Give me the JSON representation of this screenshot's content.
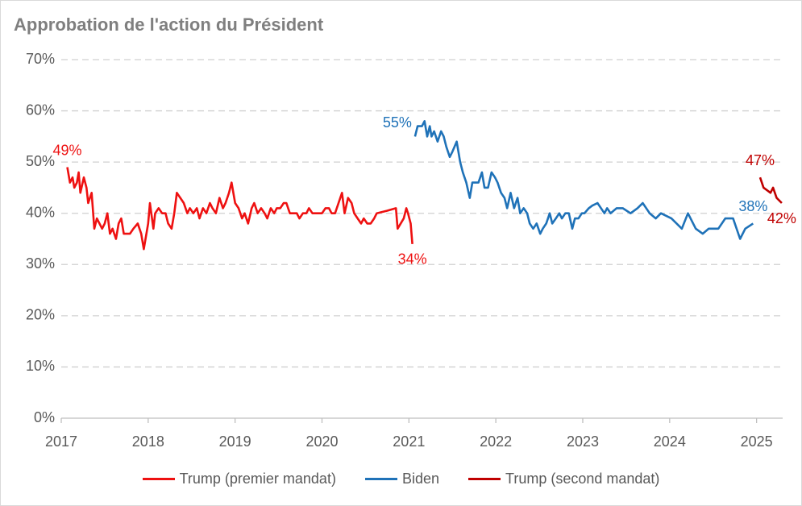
{
  "chart_data": {
    "type": "line",
    "title": "Approbation de l'action du Président",
    "xlim": [
      2017,
      2025.3
    ],
    "xticks": [
      2017,
      2018,
      2019,
      2020,
      2021,
      2022,
      2023,
      2024,
      2025
    ],
    "ylim": [
      0,
      70
    ],
    "yticks": [
      {
        "value": 0,
        "label": "0%"
      },
      {
        "value": 10,
        "label": "10%"
      },
      {
        "value": 20,
        "label": "20%"
      },
      {
        "value": 30,
        "label": "30%"
      },
      {
        "value": 40,
        "label": "40%"
      },
      {
        "value": 50,
        "label": "50%"
      },
      {
        "value": 60,
        "label": "60%"
      },
      {
        "value": 70,
        "label": "70%"
      }
    ],
    "grid": true,
    "legend": "bottom",
    "series": [
      {
        "name": "Trump (premier mandat)",
        "color": "#ee1111",
        "x": [
          2017.07,
          2017.1,
          2017.13,
          2017.15,
          2017.18,
          2017.2,
          2017.22,
          2017.26,
          2017.29,
          2017.31,
          2017.35,
          2017.38,
          2017.41,
          2017.44,
          2017.47,
          2017.5,
          2017.53,
          2017.56,
          2017.59,
          2017.63,
          2017.66,
          2017.69,
          2017.72,
          2017.79,
          2017.83,
          2017.88,
          2017.92,
          2017.95,
          2018.0,
          2018.02,
          2018.06,
          2018.08,
          2018.12,
          2018.16,
          2018.2,
          2018.23,
          2018.27,
          2018.3,
          2018.33,
          2018.37,
          2018.41,
          2018.45,
          2018.48,
          2018.52,
          2018.56,
          2018.59,
          2018.63,
          2018.67,
          2018.71,
          2018.74,
          2018.78,
          2018.82,
          2018.86,
          2018.89,
          2018.93,
          2018.96,
          2019.0,
          2019.04,
          2019.08,
          2019.11,
          2019.15,
          2019.19,
          2019.22,
          2019.26,
          2019.3,
          2019.34,
          2019.37,
          2019.41,
          2019.45,
          2019.48,
          2019.52,
          2019.56,
          2019.59,
          2019.63,
          2019.67,
          2019.71,
          2019.74,
          2019.78,
          2019.82,
          2019.85,
          2019.89,
          2019.93,
          2019.97,
          2020.0,
          2020.04,
          2020.08,
          2020.11,
          2020.15,
          2020.19,
          2020.23,
          2020.26,
          2020.3,
          2020.34,
          2020.37,
          2020.41,
          2020.45,
          2020.48,
          2020.52,
          2020.56,
          2020.6,
          2020.63,
          2020.75,
          2020.85,
          2020.87,
          2020.94,
          2020.97,
          2020.99,
          2021.02,
          2021.04
        ],
        "values": [
          49,
          46,
          47,
          45,
          46,
          48,
          44,
          47,
          45,
          42,
          44,
          37,
          39,
          38,
          37,
          38,
          40,
          36,
          37,
          35,
          38,
          39,
          36,
          36,
          37,
          38,
          36,
          33,
          38,
          42,
          37,
          40,
          41,
          40,
          40,
          38,
          37,
          40,
          44,
          43,
          42,
          40,
          41,
          40,
          41,
          39,
          41,
          40,
          42,
          41,
          40,
          43,
          41,
          42,
          44,
          46,
          42,
          41,
          39,
          40,
          38,
          41,
          42,
          40,
          41,
          40,
          39,
          41,
          40,
          41,
          41,
          42,
          42,
          40,
          40,
          40,
          39,
          40,
          40,
          41,
          40,
          40,
          40,
          40,
          41,
          41,
          40,
          40,
          42,
          44,
          40,
          43,
          42,
          40,
          39,
          38,
          39,
          38,
          38,
          39,
          40,
          40.5,
          41,
          37,
          39,
          41,
          40,
          38,
          34
        ]
      },
      {
        "name": "Biden",
        "color": "#1f72b8",
        "x": [
          2021.07,
          2021.1,
          2021.12,
          2021.15,
          2021.18,
          2021.21,
          2021.24,
          2021.26,
          2021.29,
          2021.33,
          2021.37,
          2021.4,
          2021.43,
          2021.47,
          2021.5,
          2021.55,
          2021.59,
          2021.62,
          2021.66,
          2021.7,
          2021.73,
          2021.76,
          2021.8,
          2021.84,
          2021.87,
          2021.91,
          2021.95,
          2021.99,
          2022.02,
          2022.06,
          2022.1,
          2022.13,
          2022.17,
          2022.21,
          2022.25,
          2022.28,
          2022.32,
          2022.36,
          2022.39,
          2022.43,
          2022.47,
          2022.51,
          2022.54,
          2022.58,
          2022.62,
          2022.65,
          2022.69,
          2022.73,
          2022.76,
          2022.8,
          2022.84,
          2022.88,
          2022.91,
          2022.95,
          2022.99,
          2023.02,
          2023.07,
          2023.11,
          2023.17,
          2023.25,
          2023.28,
          2023.32,
          2023.39,
          2023.46,
          2023.55,
          2023.63,
          2023.69,
          2023.77,
          2023.84,
          2023.9,
          2024.02,
          2024.14,
          2024.21,
          2024.3,
          2024.38,
          2024.45,
          2024.56,
          2024.64,
          2024.73,
          2024.81,
          2024.87,
          2024.96
        ],
        "values": [
          55,
          57,
          57,
          57,
          58,
          55,
          57,
          55,
          56,
          54,
          56,
          55,
          53,
          51,
          52,
          54,
          50,
          48,
          46,
          43,
          46,
          46,
          46,
          48,
          45,
          45,
          48,
          47,
          46,
          44,
          43,
          41,
          44,
          41,
          43,
          40,
          41,
          40,
          38,
          37,
          38,
          36,
          37,
          38,
          40,
          38,
          39,
          40,
          39,
          40,
          40,
          37,
          39,
          39,
          40,
          40,
          41,
          41.5,
          42,
          40,
          41,
          40,
          41,
          41,
          40,
          41,
          42,
          40,
          39,
          40,
          39,
          37,
          40,
          37,
          36,
          37,
          37,
          39,
          39,
          35,
          37,
          38
        ]
      },
      {
        "name": "Trump (second mandat)",
        "color": "#c00000",
        "x": [
          2025.04,
          2025.08,
          2025.12,
          2025.16,
          2025.19,
          2025.23,
          2025.29
        ],
        "values": [
          47,
          45,
          44.5,
          44,
          45,
          43,
          42
        ]
      }
    ],
    "annotations": [
      {
        "text": "49%",
        "x": 2017.07,
        "y": 49,
        "color": "#ee1111",
        "position": "above"
      },
      {
        "text": "34%",
        "x": 2021.04,
        "y": 34,
        "color": "#ee1111",
        "position": "below"
      },
      {
        "text": "55%",
        "x": 2021.07,
        "y": 55,
        "color": "#1f72b8",
        "position": "above-left"
      },
      {
        "text": "38%",
        "x": 2024.96,
        "y": 38,
        "color": "#1f72b8",
        "position": "above"
      },
      {
        "text": "47%",
        "x": 2025.04,
        "y": 47,
        "color": "#c00000",
        "position": "above"
      },
      {
        "text": "42%",
        "x": 2025.29,
        "y": 42,
        "color": "#c00000",
        "position": "below"
      }
    ]
  }
}
